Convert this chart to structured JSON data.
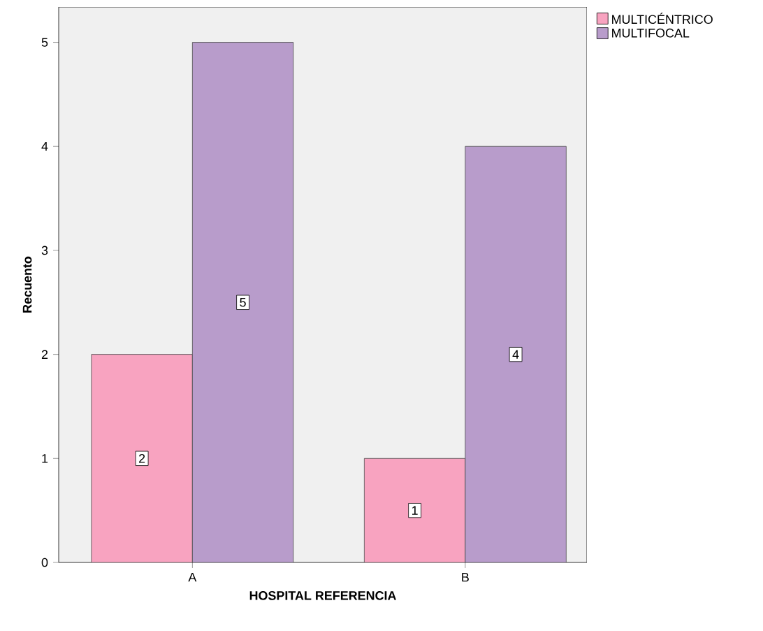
{
  "chart_data": {
    "type": "bar",
    "xlabel": "HOSPITAL REFERENCIA",
    "ylabel": "Recuento",
    "categories": [
      "A",
      "B"
    ],
    "series": [
      {
        "name": "MULTICÉNTRICO",
        "color": "#f8a3c0",
        "values": [
          2,
          1
        ]
      },
      {
        "name": "MULTIFOCAL",
        "color": "#b89ccb",
        "values": [
          5,
          4
        ]
      }
    ],
    "ylim": [
      0,
      5.34
    ],
    "yticks": [
      0,
      1,
      2,
      3,
      4,
      5
    ],
    "data_labels": true,
    "legend": "top right"
  }
}
